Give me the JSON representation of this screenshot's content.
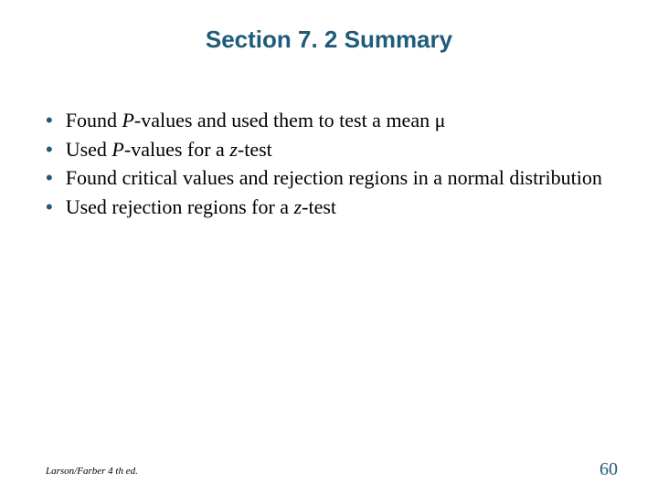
{
  "title": "Section 7. 2 Summary",
  "title_color": "#1f5b7a",
  "title_fontsize": 26,
  "title_font": "Arial",
  "body_font": "Times New Roman",
  "body_fontsize": 22,
  "body_color": "#000000",
  "bullet_marker": "•",
  "bullet_marker_color": "#1f5b7a",
  "bullets": [
    {
      "prefix": "Found ",
      "italic": "P",
      "suffix": "-values and used them to test a mean μ"
    },
    {
      "prefix": "Used ",
      "italic": "P",
      "suffix1": "-values for a ",
      "italic2": "z",
      "suffix2": "-test"
    },
    {
      "text": "Found critical values and rejection regions in a normal distribution"
    },
    {
      "prefix": "Used rejection regions for a ",
      "italic": "z",
      "suffix": "-test"
    }
  ],
  "footer_left": "Larson/Farber 4 th ed.",
  "footer_left_fontsize": 11,
  "page_number": "60",
  "page_number_color": "#1f5b7a",
  "page_number_fontsize": 20,
  "background_color": "#ffffff",
  "slide_width": 720,
  "slide_height": 540
}
